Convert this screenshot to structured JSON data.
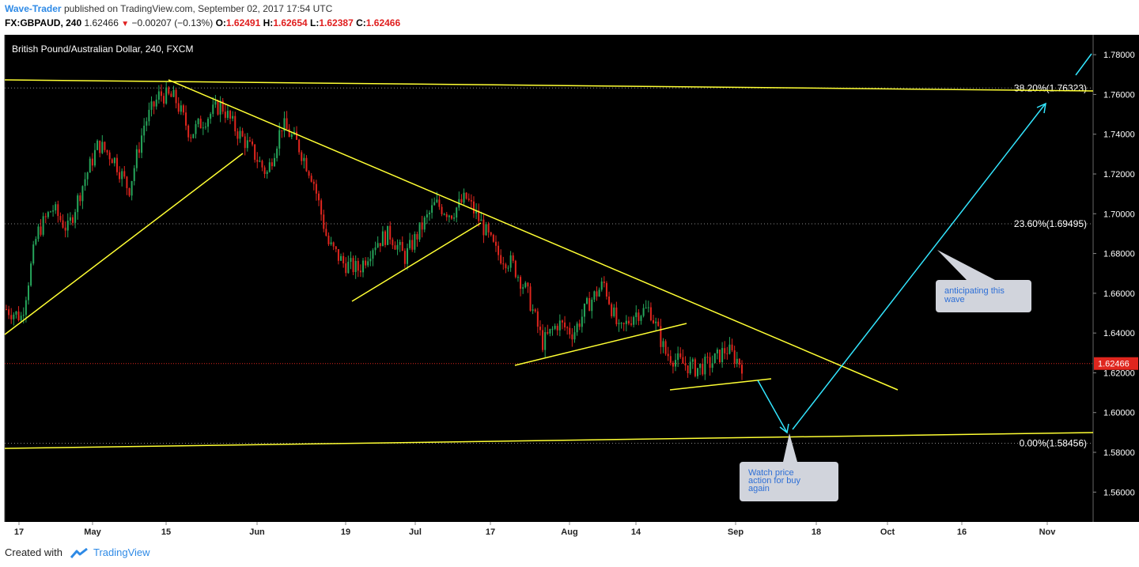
{
  "header": {
    "author": "Wave-Trader",
    "published": "published on TradingView.com, September 02, 2017 17:54 UTC",
    "symbol": "FX:GBPAUD, 240",
    "last": "1.62466",
    "change_arrow": "▼",
    "change": "−0.00207 (−0.13%)",
    "o_label": "O:",
    "o": "1.62491",
    "h_label": "H:",
    "h": "1.62654",
    "l_label": "L:",
    "l": "1.62387",
    "c_label": "C:",
    "c": "1.62466"
  },
  "footer": {
    "created_with": "Created with",
    "brand": "TradingView",
    "logo_icon": "tradingview-logo-icon"
  },
  "chart_data": {
    "type": "candlestick",
    "title": "British Pound/Australian Dollar, 240, FXCM",
    "ylim": [
      1.545,
      1.79
    ],
    "y_ticks": [
      "1.78000",
      "1.76000",
      "1.74000",
      "1.72000",
      "1.70000",
      "1.68000",
      "1.66000",
      "1.64000",
      "1.62000",
      "1.60000",
      "1.58000",
      "1.56000"
    ],
    "x_ticks": [
      "17",
      "May",
      "15",
      "Jun",
      "19",
      "Jul",
      "17",
      "Aug",
      "14",
      "Sep",
      "18",
      "Oct",
      "16",
      "Nov"
    ],
    "current_price": "1.62466",
    "fib_levels": [
      {
        "label": "38.20%(1.76323)",
        "value": 1.76323
      },
      {
        "label": "23.60%(1.69495)",
        "value": 1.69495
      },
      {
        "label": "0.00%(1.58456)",
        "value": 1.58456
      }
    ],
    "close_path": [
      1.652,
      1.648,
      1.69,
      1.703,
      1.692,
      1.715,
      1.735,
      1.728,
      1.712,
      1.745,
      1.76,
      1.758,
      1.74,
      1.748,
      1.755,
      1.742,
      1.732,
      1.72,
      1.745,
      1.735,
      1.718,
      1.685,
      1.675,
      1.672,
      1.685,
      1.69,
      1.678,
      1.692,
      1.705,
      1.7,
      1.708,
      1.695,
      1.68,
      1.675,
      1.66,
      1.635,
      1.645,
      1.64,
      1.655,
      1.665,
      1.64,
      1.65,
      1.652,
      1.63,
      1.625,
      1.622,
      1.625,
      1.632,
      1.624
    ],
    "annotations": [
      {
        "text": "anticipating this wave"
      },
      {
        "text": "Watch price action for buy again"
      }
    ],
    "colors": {
      "background": "#000000",
      "up": "#26a65b",
      "down": "#e0261e",
      "trend": "#ffff33",
      "projection": "#33e6ff",
      "axis_text": "#ffffff"
    }
  }
}
